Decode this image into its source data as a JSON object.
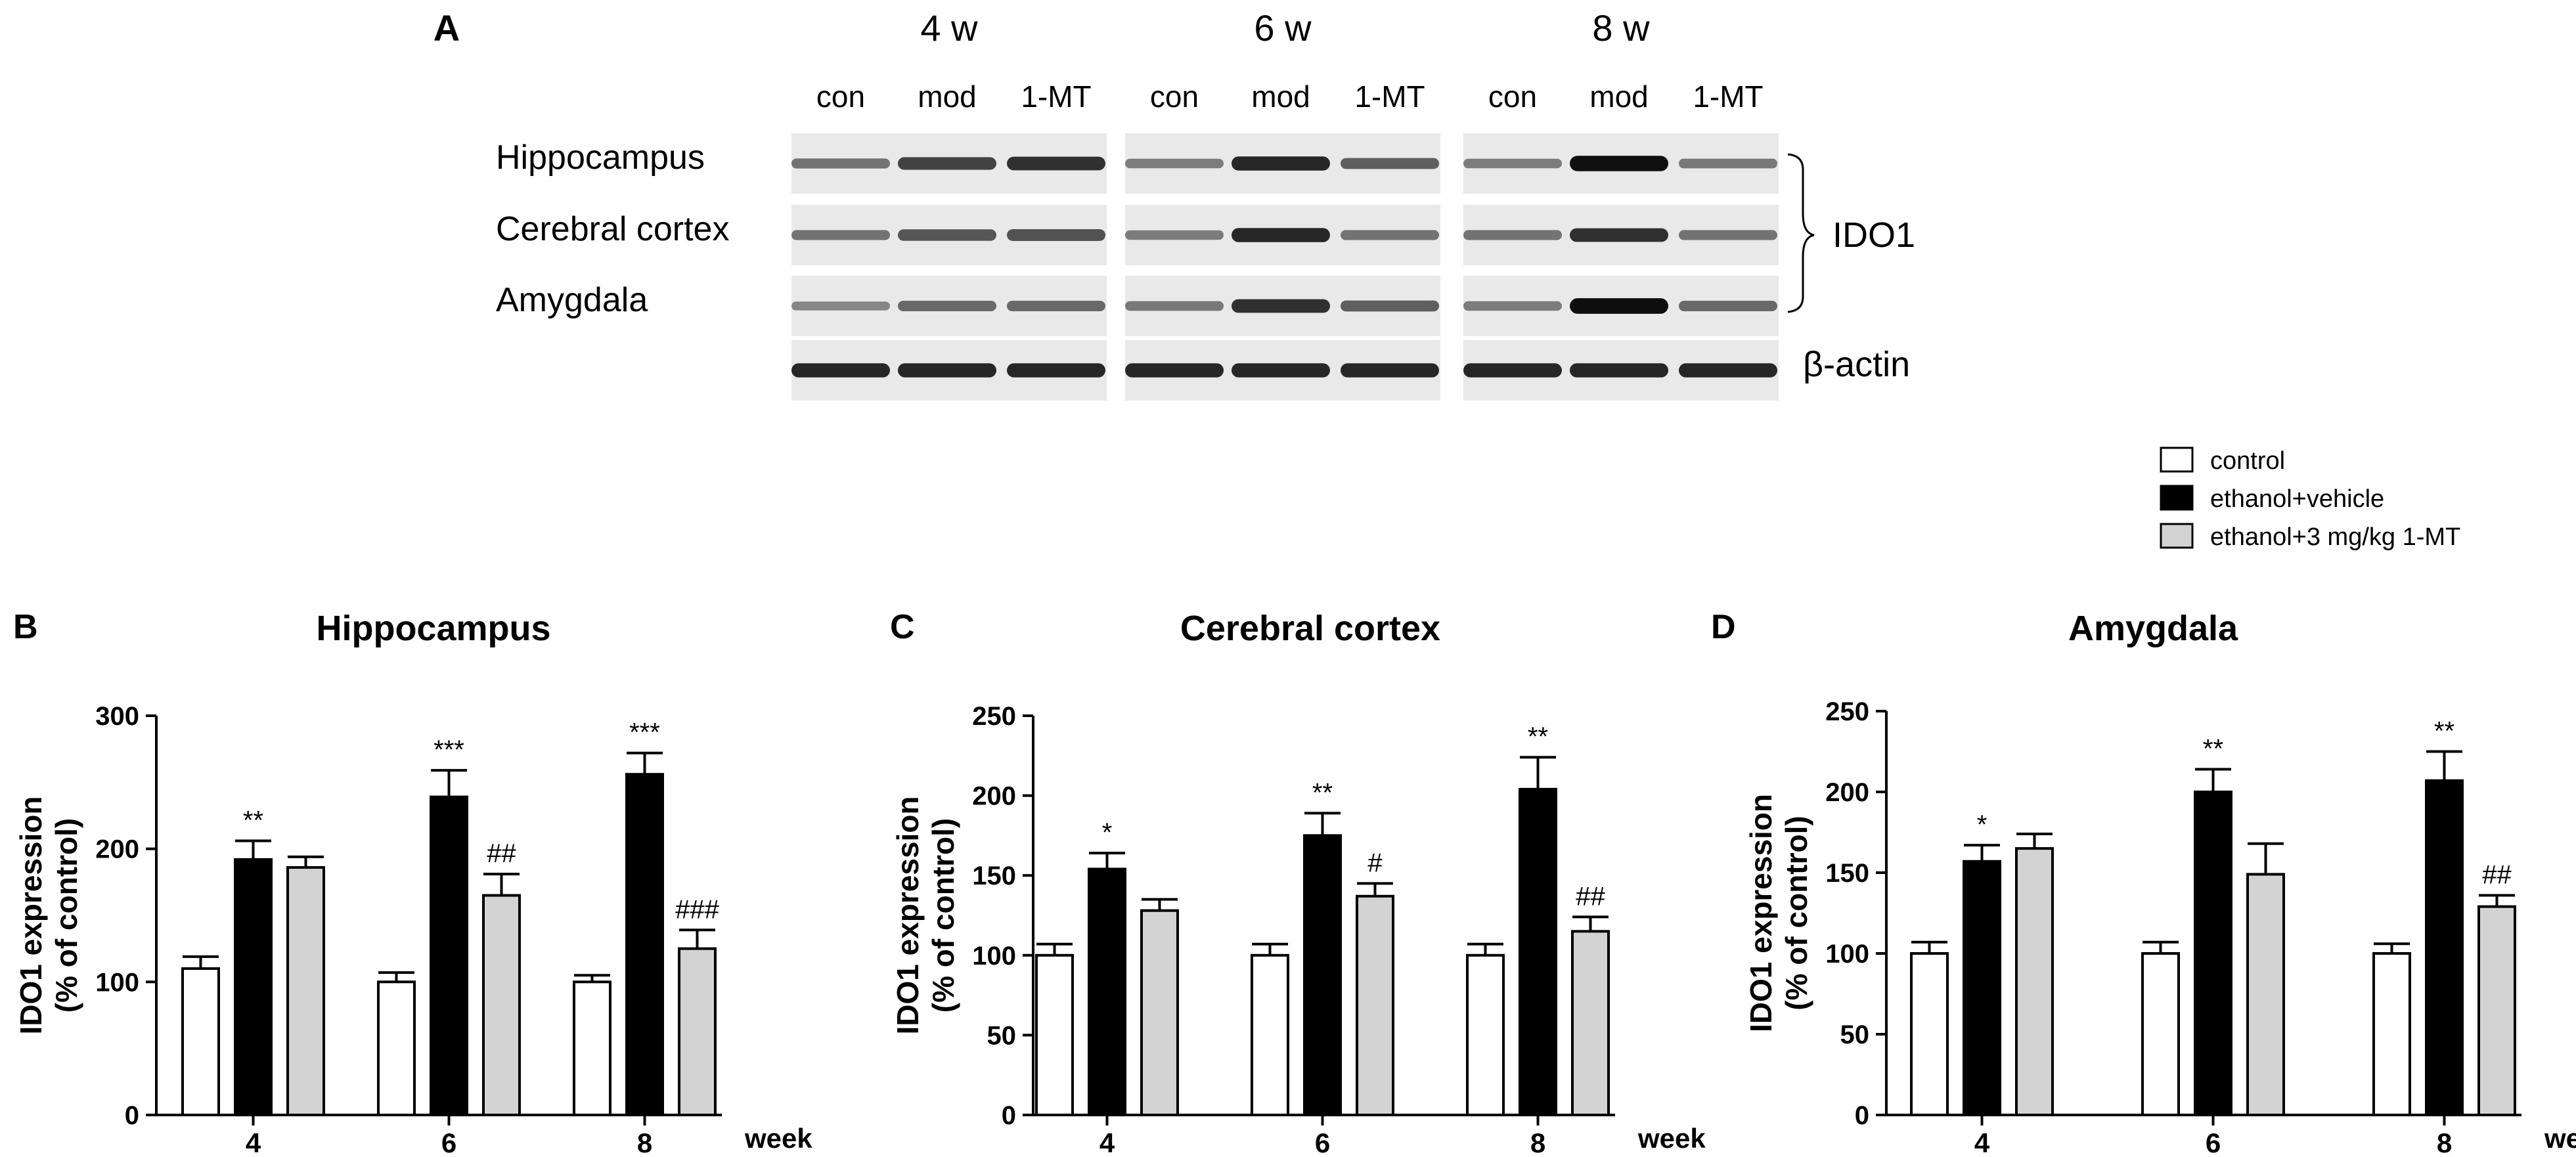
{
  "blot": {
    "panel_label": "A",
    "time_groups": [
      {
        "label": "4 w",
        "lanes": [
          "con",
          "mod",
          "1-MT"
        ]
      },
      {
        "label": "6 w",
        "lanes": [
          "con",
          "mod",
          "1-MT"
        ]
      },
      {
        "label": "8 w",
        "lanes": [
          "con",
          "mod",
          "1-MT"
        ]
      }
    ],
    "rows": [
      "Hippocampus",
      "Cerebral cortex",
      "Amygdala"
    ],
    "bracket_label": "IDO1",
    "loading_control": "β-actin",
    "band_intensity": [
      [
        [
          0.45,
          0.7,
          0.8
        ],
        [
          0.4,
          0.85,
          0.55
        ],
        [
          0.4,
          0.97,
          0.42
        ]
      ],
      [
        [
          0.45,
          0.6,
          0.62
        ],
        [
          0.4,
          0.85,
          0.45
        ],
        [
          0.45,
          0.8,
          0.45
        ]
      ],
      [
        [
          0.35,
          0.5,
          0.5
        ],
        [
          0.42,
          0.8,
          0.55
        ],
        [
          0.4,
          0.98,
          0.5
        ]
      ],
      [
        [
          0.85,
          0.85,
          0.85
        ],
        [
          0.85,
          0.85,
          0.85
        ],
        [
          0.85,
          0.85,
          0.85
        ]
      ]
    ]
  },
  "legend": {
    "entries": [
      {
        "label": "control",
        "color": "#ffffff"
      },
      {
        "label": "ethanol+vehicle",
        "color": "#000000"
      },
      {
        "label": "ethanol+3 mg/kg 1-MT",
        "color": "#d3d3d3"
      }
    ]
  },
  "chart_data": [
    {
      "panel_label": "B",
      "type": "bar",
      "title": "Hippocampus",
      "ylabel": "IDO1 expression\n(% of control)",
      "xlabel": "week",
      "categories": [
        "4",
        "6",
        "8"
      ],
      "ylim": [
        0,
        300
      ],
      "yticks": [
        0,
        100,
        200,
        300
      ],
      "series": [
        {
          "name": "control",
          "color": "#ffffff",
          "values": [
            110,
            100,
            100
          ],
          "errors": [
            9,
            7,
            5
          ],
          "annotations": [
            "",
            "",
            ""
          ]
        },
        {
          "name": "ethanol+vehicle",
          "color": "#000000",
          "values": [
            192,
            239,
            256
          ],
          "errors": [
            14,
            20,
            16
          ],
          "annotations": [
            "**",
            "***",
            "***"
          ]
        },
        {
          "name": "ethanol+3 mg/kg 1-MT",
          "color": "#d3d3d3",
          "values": [
            186,
            165,
            125
          ],
          "errors": [
            8,
            16,
            14
          ],
          "annotations": [
            "",
            "##",
            "###"
          ]
        }
      ]
    },
    {
      "panel_label": "C",
      "type": "bar",
      "title": "Cerebral cortex",
      "ylabel": "IDO1 expression\n(% of control)",
      "xlabel": "week",
      "categories": [
        "4",
        "6",
        "8"
      ],
      "ylim": [
        0,
        250
      ],
      "yticks": [
        0,
        50,
        100,
        150,
        200,
        250
      ],
      "series": [
        {
          "name": "control",
          "color": "#ffffff",
          "values": [
            100,
            100,
            100
          ],
          "errors": [
            7,
            7,
            7
          ],
          "annotations": [
            "",
            "",
            ""
          ]
        },
        {
          "name": "ethanol+vehicle",
          "color": "#000000",
          "values": [
            154,
            175,
            204
          ],
          "errors": [
            10,
            14,
            20
          ],
          "annotations": [
            "*",
            "**",
            "**"
          ]
        },
        {
          "name": "ethanol+3 mg/kg 1-MT",
          "color": "#d3d3d3",
          "values": [
            128,
            137,
            115
          ],
          "errors": [
            7,
            8,
            9
          ],
          "annotations": [
            "",
            "#",
            "##"
          ]
        }
      ]
    },
    {
      "panel_label": "D",
      "type": "bar",
      "title": "Amygdala",
      "ylabel": "IDO1 expression\n(% of control)",
      "xlabel": "week",
      "categories": [
        "4",
        "6",
        "8"
      ],
      "ylim": [
        0,
        250
      ],
      "yticks": [
        0,
        50,
        100,
        150,
        200,
        250
      ],
      "series": [
        {
          "name": "control",
          "color": "#ffffff",
          "values": [
            100,
            100,
            100
          ],
          "errors": [
            7,
            7,
            6
          ],
          "annotations": [
            "",
            "",
            ""
          ]
        },
        {
          "name": "ethanol+vehicle",
          "color": "#000000",
          "values": [
            157,
            200,
            207
          ],
          "errors": [
            10,
            14,
            18
          ],
          "annotations": [
            "*",
            "**",
            "**"
          ]
        },
        {
          "name": "ethanol+3 mg/kg 1-MT",
          "color": "#d3d3d3",
          "values": [
            165,
            149,
            129
          ],
          "errors": [
            9,
            19,
            7
          ],
          "annotations": [
            "",
            "",
            "##"
          ]
        }
      ]
    }
  ]
}
